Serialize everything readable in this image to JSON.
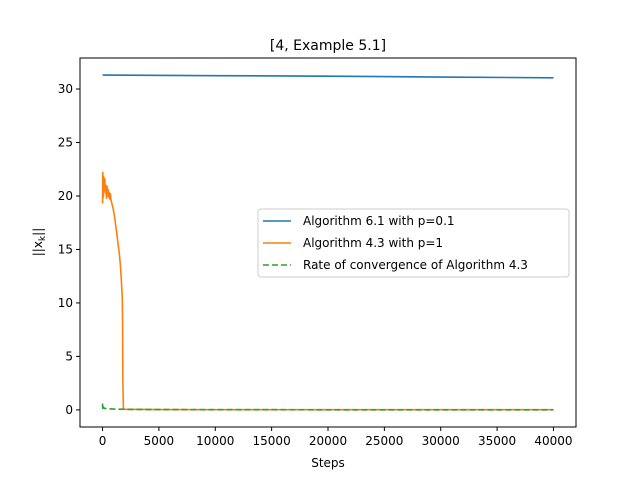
{
  "chart_data": {
    "type": "line",
    "title": "[4, Example 5.1]",
    "xlabel": "Steps",
    "ylabel": "||x_k||",
    "xlim": [
      -2000,
      42000
    ],
    "ylim": [
      -1.6,
      32.9
    ],
    "xticks": [
      0,
      5000,
      10000,
      15000,
      20000,
      25000,
      30000,
      35000,
      40000
    ],
    "yticks": [
      0,
      5,
      10,
      15,
      20,
      25,
      30
    ],
    "grid": false,
    "legend_position": "center-right",
    "series": [
      {
        "name": "Algorithm 6.1 with p=0.1",
        "color": "#1f77b4",
        "style": "solid",
        "x": [
          0,
          10000,
          20000,
          30000,
          40000
        ],
        "y": [
          31.3,
          31.25,
          31.2,
          31.12,
          31.05
        ]
      },
      {
        "name": "Algorithm 4.3 with p=1",
        "color": "#ff7f0e",
        "style": "solid",
        "x": [
          0,
          20,
          40,
          60,
          80,
          100,
          150,
          200,
          250,
          300,
          350,
          400,
          450,
          500,
          550,
          600,
          650,
          700,
          750,
          800,
          900,
          1000,
          1100,
          1200,
          1300,
          1400,
          1500,
          1600,
          1700,
          1750,
          1780,
          1800,
          1850,
          2000,
          5000,
          10000,
          20000,
          30000,
          40000
        ],
        "y": [
          19.3,
          22.2,
          19.8,
          21.5,
          20.0,
          21.8,
          20.6,
          21.6,
          20.3,
          21.0,
          19.8,
          20.9,
          20.0,
          20.6,
          19.9,
          20.3,
          19.7,
          20.2,
          19.6,
          19.4,
          19.0,
          18.5,
          17.8,
          17.0,
          16.2,
          15.3,
          14.5,
          13.3,
          11.5,
          10.5,
          8.0,
          3.0,
          0.1,
          0.05,
          0.03,
          0.02,
          0.02,
          0.02,
          0.02
        ]
      },
      {
        "name": "Rate of convergence of Algorithm 4.3",
        "color": "#2ca02c",
        "style": "dashed",
        "x": [
          0,
          10,
          20,
          40,
          80,
          150,
          300,
          600,
          1000,
          2000,
          5000,
          10000,
          20000,
          30000,
          40000
        ],
        "y": [
          0.6,
          0.15,
          0.45,
          0.2,
          0.25,
          0.15,
          0.12,
          0.1,
          0.08,
          0.05,
          0.03,
          0.02,
          0.01,
          0.01,
          0.01
        ]
      }
    ]
  }
}
